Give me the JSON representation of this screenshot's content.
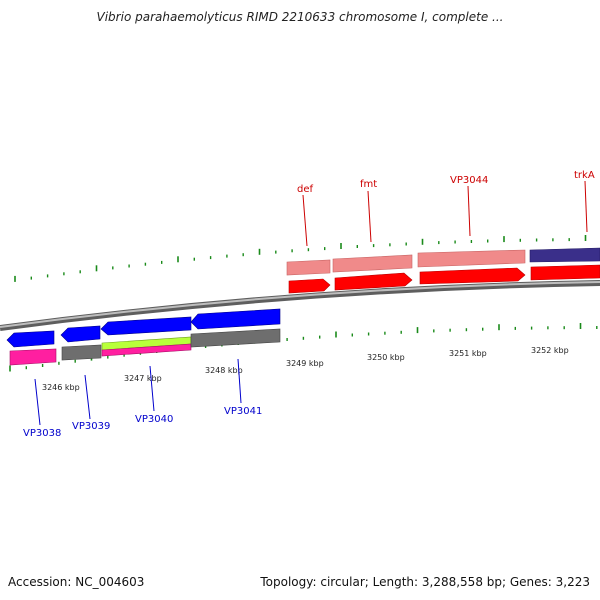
{
  "title": "Vibrio parahaemolyticus RIMD 2210633 chromosome I, complete ...",
  "accession": "Accession: NC_004603",
  "topology": "Topology: circular; Length: 3,288,558 bp; Genes: 3,223",
  "colors": {
    "backbone": "#8c8c8c",
    "tick": "#1a8a1a",
    "forward_label": "#cc0000",
    "reverse_label": "#0000cc",
    "gene_red": "#ff0000",
    "gene_pink": "#f08a8a",
    "gene_navy": "#3a2f8a",
    "gene_blue": "#0000ff",
    "gene_magenta": "#ff1fa0",
    "gene_gray": "#6e6e6e",
    "gene_lime": "#b8ff3a"
  },
  "kbp_labels": [
    "3246 kbp",
    "3247 kbp",
    "3248 kbp",
    "3249 kbp",
    "3250 kbp",
    "3251 kbp",
    "3252 kbp"
  ],
  "forward_genes": [
    "def",
    "fmt",
    "VP3044",
    "trkA"
  ],
  "reverse_genes": [
    "VP3038",
    "VP3039",
    "VP3040",
    "VP3041"
  ]
}
